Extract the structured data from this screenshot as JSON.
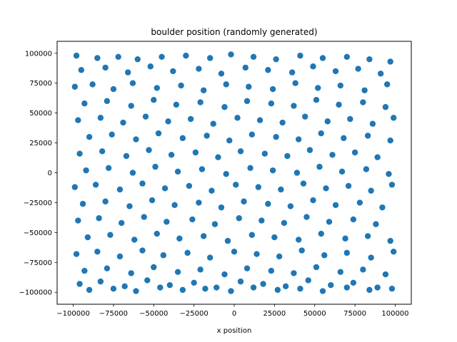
{
  "chart_data": {
    "type": "scatter",
    "title": "boulder position (randomly generated)",
    "xlabel": "x position",
    "ylabel": "",
    "xlim": [
      -110000,
      110000
    ],
    "ylim": [
      -110000,
      110000
    ],
    "xticks": [
      -100000,
      -75000,
      -50000,
      -25000,
      0,
      25000,
      50000,
      75000,
      100000
    ],
    "yticks": [
      -100000,
      -75000,
      -50000,
      -25000,
      0,
      25000,
      50000,
      75000,
      100000
    ],
    "xtick_labels": [
      "−100000",
      "−75000",
      "−50000",
      "−25000",
      "0",
      "25000",
      "50000",
      "75000",
      "100000"
    ],
    "ytick_labels": [
      "−100000",
      "−75000",
      "−50000",
      "−25000",
      "0",
      "25000",
      "50000",
      "75000",
      "100000"
    ],
    "grid": false,
    "marker_color": "#1f77b4",
    "points": {
      "note_omitted": false,
      "x": [
        -98000,
        -85000,
        -72000,
        -60000,
        -45000,
        -30000,
        -15000,
        -2000,
        12000,
        26000,
        41000,
        55000,
        70000,
        84000,
        97000,
        -95000,
        -80000,
        -66000,
        -52000,
        -38000,
        -22000,
        -8000,
        7000,
        21000,
        36000,
        49000,
        63000,
        77000,
        91000,
        -99000,
        -88000,
        -75000,
        -63000,
        -48000,
        -33000,
        -19000,
        -5000,
        9000,
        24000,
        38000,
        52000,
        66000,
        81000,
        95000,
        -93000,
        -79000,
        -64000,
        -50000,
        -36000,
        -21000,
        -6000,
        8000,
        23000,
        37000,
        51000,
        65000,
        80000,
        94000,
        -97000,
        -83000,
        -69000,
        -55000,
        -41000,
        -27000,
        -13000,
        2000,
        16000,
        30000,
        44000,
        58000,
        72000,
        86000,
        99000,
        -90000,
        -76000,
        -61000,
        -47000,
        -32000,
        -17000,
        -3000,
        11000,
        26000,
        40000,
        54000,
        68000,
        83000,
        97000,
        -96000,
        -82000,
        -67000,
        -53000,
        -39000,
        -24000,
        -10000,
        4000,
        19000,
        33000,
        47000,
        61000,
        75000,
        89000,
        -92000,
        -78000,
        -63000,
        -49000,
        -35000,
        -20000,
        -5000,
        10000,
        24000,
        39000,
        53000,
        67000,
        82000,
        96000,
        -99000,
        -86000,
        -71000,
        -57000,
        -43000,
        -28000,
        -14000,
        1000,
        15000,
        29000,
        43000,
        57000,
        71000,
        85000,
        98000,
        -94000,
        -80000,
        -65000,
        -51000,
        -37000,
        -22000,
        -8000,
        6000,
        21000,
        35000,
        49000,
        63000,
        78000,
        92000,
        -97000,
        -84000,
        -70000,
        -56000,
        -42000,
        -26000,
        -12000,
        3000,
        17000,
        31000,
        45000,
        59000,
        74000,
        88000,
        -91000,
        -77000,
        -62000,
        -48000,
        -34000,
        -19000,
        -4000,
        11000,
        25000,
        40000,
        54000,
        69000,
        83000,
        97000,
        -98000,
        -85000,
        -71000,
        -57000,
        -44000,
        -29000,
        -15000,
        0,
        14000,
        28000,
        42000,
        56000,
        70000,
        85000,
        99000,
        -93000,
        -79000,
        -64000,
        -50000,
        -35000,
        -21000,
        -6000,
        8000,
        23000,
        37000,
        51000,
        66000,
        80000,
        94000,
        -96000,
        -83000,
        -68000,
        -54000,
        -40000,
        -25000,
        -11000,
        4000,
        18000,
        32000,
        46000,
        60000,
        74000,
        89000,
        -90000,
        -75000,
        -61000,
        -46000,
        -32000,
        -18000,
        -2000,
        12000,
        27000,
        41000,
        55000,
        70000,
        84000,
        98000
      ],
      "y": [
        98000,
        96000,
        97000,
        95000,
        97000,
        98000,
        96000,
        99000,
        97000,
        95000,
        98000,
        96000,
        97000,
        95000,
        93000,
        86000,
        88000,
        84000,
        89000,
        85000,
        87000,
        83000,
        88000,
        86000,
        84000,
        89000,
        85000,
        87000,
        83000,
        72000,
        74000,
        70000,
        75000,
        71000,
        73000,
        69000,
        74000,
        72000,
        70000,
        75000,
        71000,
        73000,
        69000,
        74000,
        58000,
        60000,
        56000,
        61000,
        57000,
        59000,
        55000,
        60000,
        58000,
        56000,
        61000,
        57000,
        59000,
        55000,
        44000,
        46000,
        42000,
        47000,
        43000,
        45000,
        41000,
        46000,
        44000,
        42000,
        47000,
        43000,
        45000,
        41000,
        46000,
        30000,
        32000,
        28000,
        33000,
        29000,
        31000,
        27000,
        32000,
        30000,
        28000,
        33000,
        29000,
        31000,
        27000,
        16000,
        18000,
        14000,
        19000,
        15000,
        17000,
        13000,
        18000,
        16000,
        14000,
        19000,
        15000,
        17000,
        13000,
        2000,
        4000,
        0,
        5000,
        1000,
        3000,
        -1000,
        4000,
        2000,
        0,
        5000,
        1000,
        3000,
        -1000,
        -12000,
        -10000,
        -14000,
        -9000,
        -13000,
        -11000,
        -15000,
        -10000,
        -12000,
        -14000,
        -9000,
        -13000,
        -11000,
        -15000,
        -10000,
        -26000,
        -24000,
        -28000,
        -23000,
        -27000,
        -25000,
        -29000,
        -24000,
        -26000,
        -28000,
        -23000,
        -27000,
        -25000,
        -29000,
        -40000,
        -38000,
        -42000,
        -37000,
        -41000,
        -39000,
        -43000,
        -38000,
        -40000,
        -42000,
        -37000,
        -41000,
        -39000,
        -43000,
        -54000,
        -52000,
        -56000,
        -51000,
        -55000,
        -53000,
        -57000,
        -52000,
        -54000,
        -56000,
        -51000,
        -55000,
        -53000,
        -57000,
        -68000,
        -66000,
        -70000,
        -65000,
        -69000,
        -67000,
        -71000,
        -66000,
        -68000,
        -70000,
        -65000,
        -69000,
        -67000,
        -71000,
        -66000,
        -82000,
        -80000,
        -84000,
        -79000,
        -83000,
        -81000,
        -85000,
        -80000,
        -82000,
        -84000,
        -79000,
        -83000,
        -81000,
        -85000,
        -93000,
        -91000,
        -95000,
        -90000,
        -94000,
        -92000,
        -96000,
        -91000,
        -93000,
        -95000,
        -90000,
        -94000,
        -92000,
        -96000,
        -98000,
        -97000,
        -99000,
        -96000,
        -98000,
        -97000,
        -99000,
        -96000,
        -98000,
        -97000,
        -99000,
        -96000,
        -98000,
        -97000
      ]
    }
  }
}
